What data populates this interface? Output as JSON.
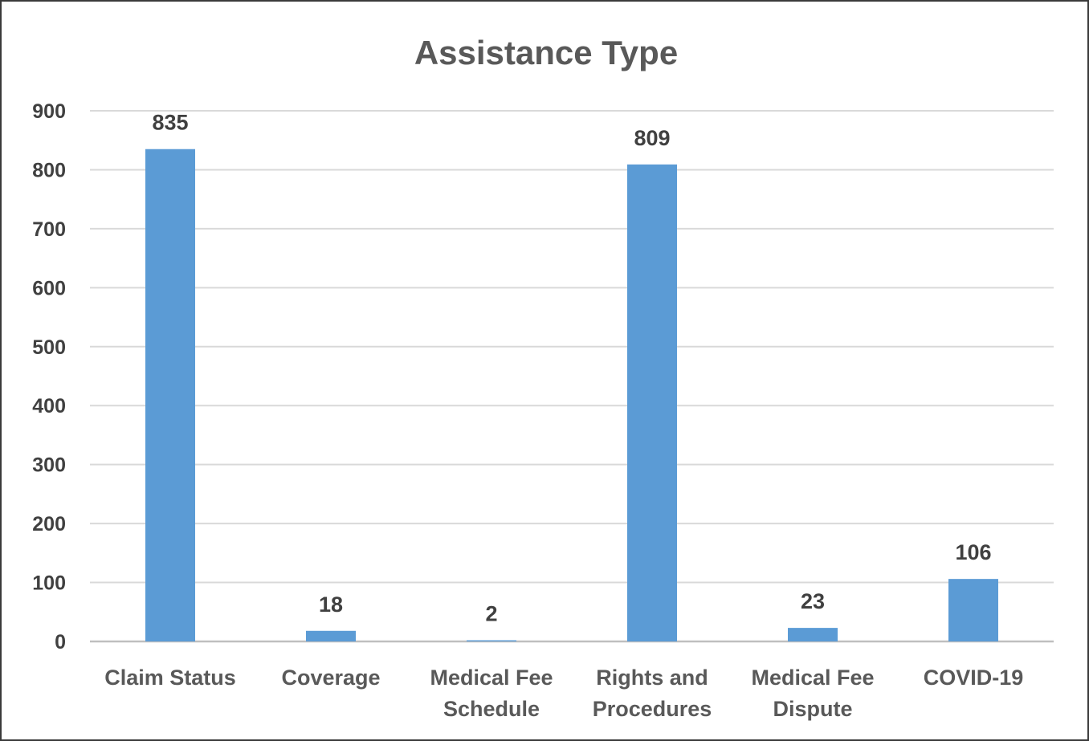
{
  "chart_data": {
    "type": "bar",
    "title": "Assistance Type",
    "categories": [
      [
        "Claim Status"
      ],
      [
        "Coverage"
      ],
      [
        "Medical Fee",
        "Schedule"
      ],
      [
        "Rights and",
        "Procedures"
      ],
      [
        "Medical Fee",
        "Dispute"
      ],
      [
        "COVID-19"
      ]
    ],
    "values": [
      835,
      18,
      2,
      809,
      23,
      106
    ],
    "data_labels": [
      "835",
      "18",
      "2",
      "809",
      "23",
      "106"
    ],
    "yticks": [
      0,
      100,
      200,
      300,
      400,
      500,
      600,
      700,
      800,
      900
    ],
    "ylim": [
      0,
      900
    ],
    "grid": true,
    "legend": "none",
    "colors": {
      "bar": "#5b9bd5",
      "grid": "#d9d9d9",
      "axis": "#bfbfbf"
    }
  }
}
